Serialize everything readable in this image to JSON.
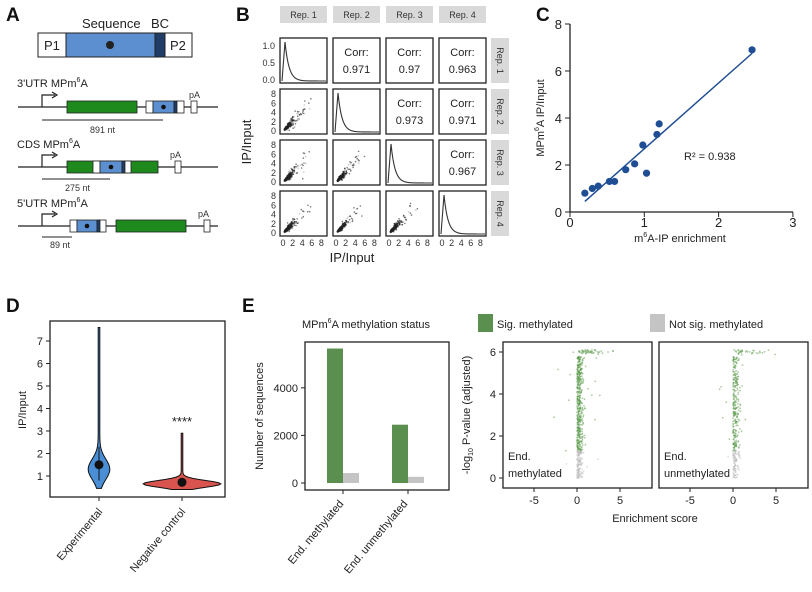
{
  "panel_labels": [
    "A",
    "B",
    "C",
    "D",
    "E"
  ],
  "panel_a": {
    "construct": {
      "sequence_label": "Sequence",
      "bc_label": "BC",
      "p1": "P1",
      "p2": "P2"
    },
    "reporters": [
      {
        "title": "3'UTR MPm",
        "sup": "6",
        "title_end": "A",
        "distance": "891 nt",
        "pa": "pA"
      },
      {
        "title": "CDS MPm",
        "sup": "6",
        "title_end": "A",
        "distance": "275 nt",
        "pa": "pA"
      },
      {
        "title": "5'UTR MPm",
        "sup": "6",
        "title_end": "A",
        "distance": "89 nt",
        "pa": "pA"
      }
    ],
    "colors": {
      "sequence": "#5b8fd0",
      "barcode": "#1f3d66",
      "cds": "#1e8a1e"
    }
  },
  "chart_data": [
    {
      "panel": "B",
      "type": "scatter",
      "replicates": [
        "Rep. 1",
        "Rep. 2",
        "Rep. 3",
        "Rep. 4"
      ],
      "xlabel": "IP/Input",
      "ylabel": "IP/Input",
      "corr_prefix": "Corr:",
      "correlations": [
        {
          "row": "Rep. 1",
          "col": "Rep. 2",
          "value": "0.971"
        },
        {
          "row": "Rep. 1",
          "col": "Rep. 3",
          "value": "0.97"
        },
        {
          "row": "Rep. 1",
          "col": "Rep. 4",
          "value": "0.963"
        },
        {
          "row": "Rep. 2",
          "col": "Rep. 3",
          "value": "0.973"
        },
        {
          "row": "Rep. 2",
          "col": "Rep. 4",
          "value": "0.971"
        },
        {
          "row": "Rep. 3",
          "col": "Rep. 4",
          "value": "0.967"
        }
      ],
      "density_yticks": [
        "0.0",
        "0.5",
        "1.0"
      ],
      "scatter_yticks": [
        "0",
        "2",
        "4",
        "6",
        "8"
      ],
      "xticks": [
        "0",
        "2",
        "4",
        "6",
        "8"
      ]
    },
    {
      "panel": "C",
      "type": "scatter",
      "xlabel": "m6A-IP enrichment",
      "ylabel": "MPm6A IP/Input",
      "xlim": [
        0,
        3
      ],
      "ylim": [
        0,
        8
      ],
      "xticks": [
        "0",
        "1",
        "2",
        "3"
      ],
      "yticks": [
        "0",
        "2",
        "4",
        "6",
        "8"
      ],
      "x": [
        0.2,
        0.3,
        0.38,
        0.53,
        0.6,
        0.75,
        0.87,
        0.98,
        1.03,
        1.17,
        1.2,
        2.45
      ],
      "y": [
        0.8,
        1.0,
        1.1,
        1.3,
        1.3,
        1.8,
        2.05,
        2.85,
        1.65,
        3.3,
        3.75,
        6.9
      ],
      "fit_line": {
        "x": [
          0.2,
          2.45
        ],
        "y": [
          0.45,
          6.75
        ]
      },
      "annotation": "R² = 0.938",
      "color": "#1f4e94"
    },
    {
      "panel": "D",
      "type": "violin",
      "categories": [
        "Experimental",
        "Negative control"
      ],
      "medians": [
        1.5,
        0.72
      ],
      "ranges": [
        [
          0.45,
          7.6
        ],
        [
          0.4,
          2.9
        ]
      ],
      "ylabel": "IP/Input",
      "yticks": [
        "1",
        "2",
        "3",
        "4",
        "5",
        "6",
        "7"
      ],
      "significance": "****",
      "colors": [
        "#4a8fd6",
        "#d9534f"
      ]
    },
    {
      "panel": "E-bar",
      "type": "bar",
      "legend_title": "MPm6A methylation status",
      "categories": [
        "End. methylated",
        "End. unmethylated"
      ],
      "series": [
        {
          "name": "Sig. methylated",
          "values": [
            5650,
            2450
          ],
          "color": "#5a8f50"
        },
        {
          "name": "Not sig. methylated",
          "values": [
            420,
            260
          ],
          "color": "#c4c4c4"
        }
      ],
      "ylabel": "Number of sequences",
      "ylim": [
        0,
        5800
      ],
      "yticks": [
        "0",
        "2000",
        "4000"
      ],
      "legend_placement": "top"
    },
    {
      "panel": "E-volcano",
      "type": "scatter",
      "facets": [
        {
          "label_1": "End.",
          "label_2": "methylated"
        },
        {
          "label_1": "End.",
          "label_2": "unmethylated"
        }
      ],
      "xlabel": "Enrichment score",
      "ylabel_pre": "-log",
      "ylabel_sub": "10",
      "ylabel_post": " P-value (adjusted)",
      "xticks": [
        "-5",
        "0",
        "5"
      ],
      "yticks": [
        "0",
        "2",
        "4",
        "6"
      ],
      "xlim": [
        -8,
        8
      ],
      "ylim": [
        -0.3,
        6.3
      ]
    }
  ]
}
